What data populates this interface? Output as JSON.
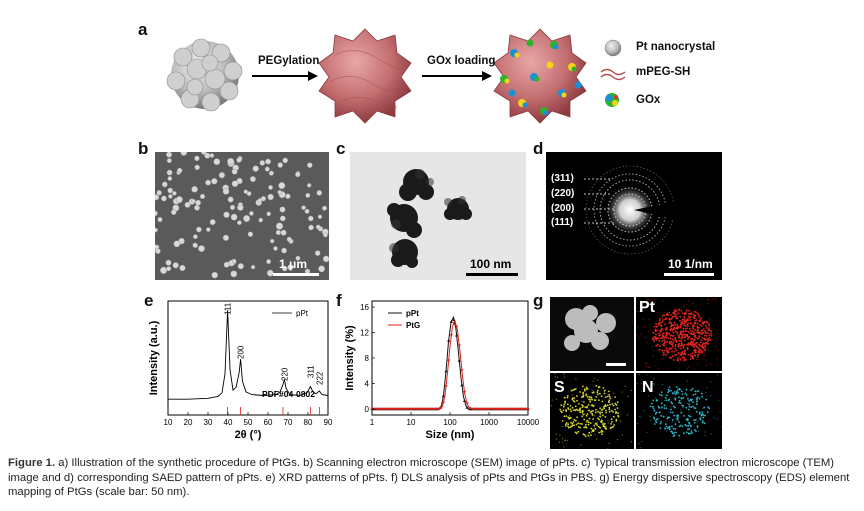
{
  "panels": {
    "a": "a",
    "b": "b",
    "c": "c",
    "d": "d",
    "e": "e",
    "f": "f",
    "g": "g"
  },
  "scheme": {
    "step1": "PEGylation",
    "step2": "GOx loading",
    "legend": [
      "Pt nanocrystal",
      "mPEG-SH",
      "GOx"
    ]
  },
  "sem": {
    "scalebar": "1 μm"
  },
  "tem": {
    "scalebar": "100 nm"
  },
  "saed": {
    "rings": [
      "(311)",
      "(220)",
      "(200)",
      "(111)"
    ],
    "scalebar": "10 1/nm"
  },
  "eds": {
    "labels": [
      "Pt",
      "S",
      "N"
    ]
  },
  "chart_data": [
    {
      "type": "line",
      "panel": "e",
      "xlabel": "2θ (°)",
      "ylabel": "Intensity (a.u.)",
      "xlim": [
        10,
        90
      ],
      "xticks": [
        10,
        20,
        30,
        40,
        50,
        60,
        70,
        80,
        90
      ],
      "series": [
        {
          "name": "pPt",
          "x": [
            10,
            20,
            30,
            35,
            37,
            38.5,
            39.8,
            41,
            42.5,
            44,
            45.5,
            46.3,
            47.2,
            49,
            52,
            58,
            64,
            66,
            67.5,
            68.2,
            69,
            71,
            76,
            79.5,
            81.2,
            82.5,
            84,
            85.7,
            87,
            90
          ],
          "y": [
            2,
            2,
            3,
            5,
            9,
            30,
            100,
            35,
            12,
            15,
            30,
            46,
            22,
            10,
            7,
            6,
            7,
            10,
            18,
            24,
            14,
            7,
            6,
            9,
            16,
            10,
            8,
            11,
            7,
            6
          ]
        }
      ],
      "peak_labels": [
        "111",
        "200",
        "220",
        "311",
        "222"
      ],
      "peak_x": [
        39.8,
        46.3,
        68.2,
        81.2,
        85.7
      ],
      "reference": {
        "label": "PDF#04-0802",
        "x": [
          39.8,
          46.3,
          67.5,
          81.3,
          85.7
        ]
      }
    },
    {
      "type": "line",
      "panel": "f",
      "xlabel": "Size (nm)",
      "ylabel": "Intensity (%)",
      "xscale": "log",
      "xlim": [
        1,
        10000
      ],
      "xticks": [
        "1",
        "10",
        "100",
        "1000",
        "10000"
      ],
      "ylim": [
        0,
        16
      ],
      "yticks": [
        0,
        4,
        8,
        12,
        16
      ],
      "series": [
        {
          "name": "pPt",
          "x": [
            1,
            10,
            50,
            59,
            68,
            79,
            91,
            106,
            122,
            141,
            164,
            190,
            220,
            255,
            295,
            340,
            400,
            10000
          ],
          "y": [
            0,
            0,
            0,
            0.3,
            2.1,
            5.9,
            10.4,
            13.6,
            14.4,
            12.7,
            9.0,
            5.0,
            2.0,
            0.5,
            0,
            0,
            0,
            0
          ]
        },
        {
          "name": "PtG",
          "x": [
            1,
            10,
            55,
            64,
            74,
            86,
            100,
            115,
            134,
            155,
            180,
            208,
            240,
            280,
            325,
            380,
            440,
            10000
          ],
          "y": [
            0,
            0,
            0,
            0.4,
            2.0,
            5.5,
            9.8,
            12.9,
            13.8,
            12.4,
            9.0,
            5.3,
            2.3,
            0.7,
            0.1,
            0,
            0,
            0
          ]
        }
      ],
      "colors": {
        "pPt": "#111111",
        "PtG": "#e0201b"
      }
    }
  ],
  "caption": {
    "label": "Figure 1.",
    "text": "a) Illustration of the synthetic procedure of PtGs. b) Scanning electron microscope (SEM) image of pPts. c) Typical transmission electron microscope (TEM) image and d) corresponding SAED pattern of pPts. e) XRD patterns of pPts. f) DLS analysis of pPts and PtGs in PBS. g) Energy dispersive spectroscopy (EDS) element mapping of PtGs (scale bar: 50 nm)."
  }
}
